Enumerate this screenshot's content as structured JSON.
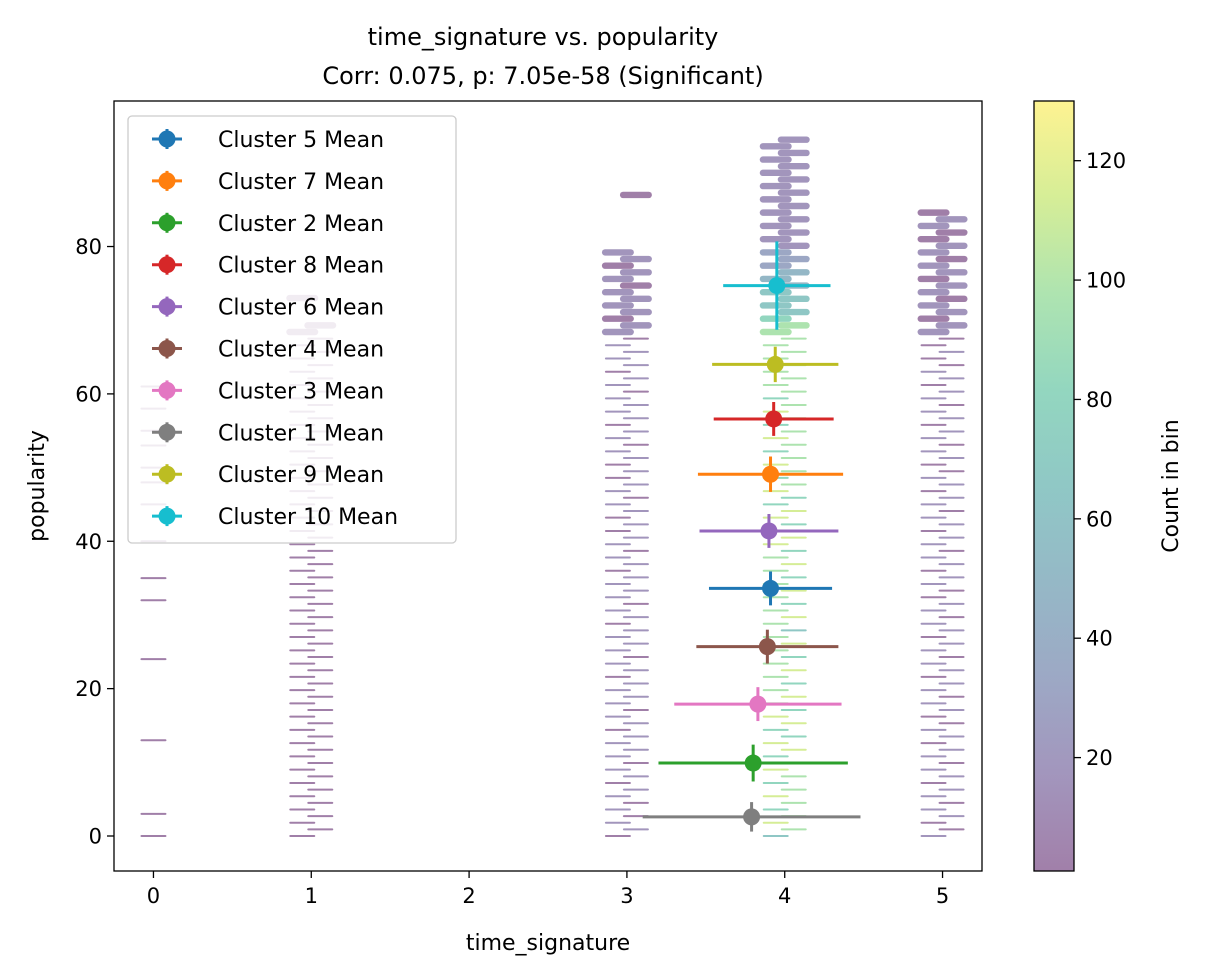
{
  "chart_data": {
    "type": "scatter",
    "title": "time_signature vs. popularity",
    "subtitle": "Corr: 0.075, p: 7.05e-58 (Significant)",
    "xlabel": "time_signature",
    "ylabel": "popularity",
    "xlim": [
      -0.25,
      5.25
    ],
    "ylim": [
      -4.75,
      99.75
    ],
    "xticks": [
      "0",
      "1",
      "2",
      "3",
      "4",
      "5"
    ],
    "yticks": [
      "0",
      "20",
      "40",
      "60",
      "80"
    ],
    "legend_position": "upper-left",
    "colorbar": {
      "label": "Count in bin",
      "range": [
        1,
        130
      ],
      "ticks": [
        "20",
        "40",
        "60",
        "80",
        "100",
        "120"
      ],
      "colormap": "viridis",
      "alpha": 0.5
    },
    "hexbin_columns": [
      {
        "x": 0,
        "y_values": [
          0,
          3,
          13,
          24,
          32,
          35,
          40,
          45,
          48,
          50,
          53,
          55,
          58,
          61
        ]
      },
      {
        "x": 1,
        "y_min": 0,
        "y_max": 70,
        "extra_y": [
          73
        ]
      },
      {
        "x": 3,
        "y_min": 0,
        "y_max": 80,
        "extra_y": [
          87
        ]
      },
      {
        "x": 4,
        "y_min": 0,
        "y_max": 95
      },
      {
        "x": 5,
        "y_min": 0,
        "y_max": 85
      }
    ],
    "series": [
      {
        "name": "Cluster 5 Mean",
        "color": "#1f77b4",
        "x": 3.91,
        "y": 33.6,
        "xerr": 0.39,
        "yerr": 2.3
      },
      {
        "name": "Cluster 7 Mean",
        "color": "#ff7f0e",
        "x": 3.91,
        "y": 49.1,
        "xerr": 0.46,
        "yerr": 2.4
      },
      {
        "name": "Cluster 2 Mean",
        "color": "#2ca02c",
        "x": 3.8,
        "y": 9.9,
        "xerr": 0.6,
        "yerr": 2.5
      },
      {
        "name": "Cluster 8 Mean",
        "color": "#d62728",
        "x": 3.93,
        "y": 56.6,
        "xerr": 0.38,
        "yerr": 2.3
      },
      {
        "name": "Cluster 6 Mean",
        "color": "#9467bd",
        "x": 3.9,
        "y": 41.4,
        "xerr": 0.44,
        "yerr": 2.3
      },
      {
        "name": "Cluster 4 Mean",
        "color": "#8c564b",
        "x": 3.89,
        "y": 25.7,
        "xerr": 0.45,
        "yerr": 2.3
      },
      {
        "name": "Cluster 3 Mean",
        "color": "#e377c2",
        "x": 3.83,
        "y": 17.9,
        "xerr": 0.53,
        "yerr": 2.3
      },
      {
        "name": "Cluster 1 Mean",
        "color": "#7f7f7f",
        "x": 3.79,
        "y": 2.6,
        "xerr": 0.69,
        "yerr": 2.0
      },
      {
        "name": "Cluster 9 Mean",
        "color": "#bcbd22",
        "x": 3.94,
        "y": 64.0,
        "xerr": 0.4,
        "yerr": 2.4
      },
      {
        "name": "Cluster 10 Mean",
        "color": "#17becf",
        "x": 3.95,
        "y": 74.7,
        "xerr": 0.34,
        "yerr": 6.0
      }
    ]
  }
}
